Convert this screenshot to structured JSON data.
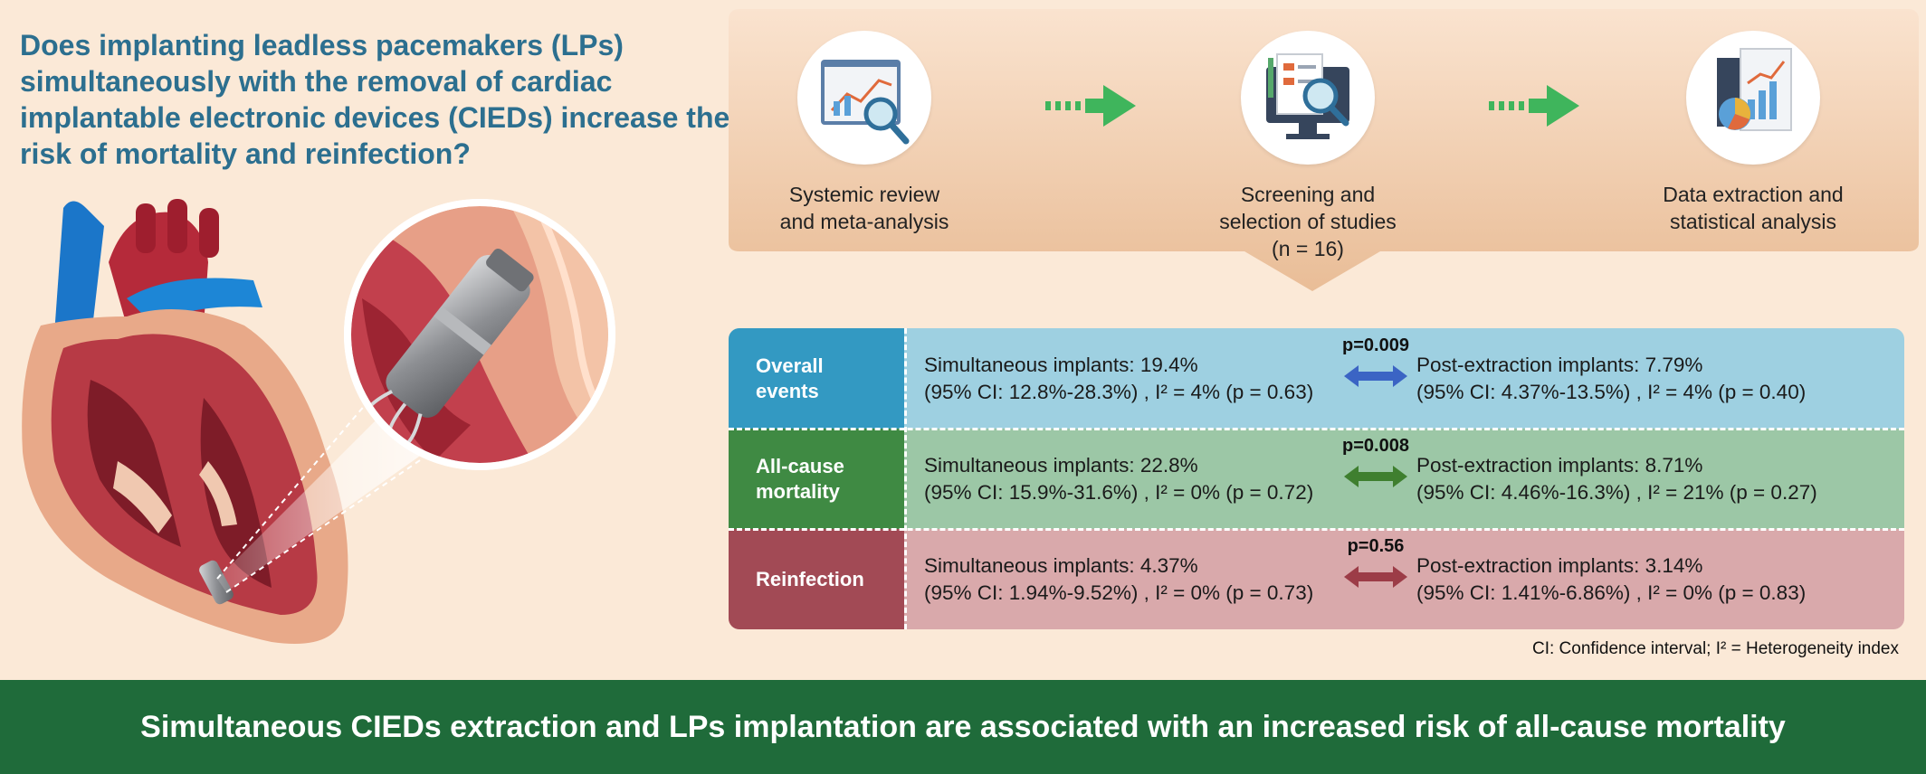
{
  "question": "Does implanting leadless pacemakers (LPs) simultaneously with the removal of cardiac implantable electronic devices (CIEDs) increase the risk of mortality and reinfection?",
  "workflow": {
    "steps": [
      {
        "label": "Systemic review\nand meta-analysis",
        "icon": "chart-magnifier-icon"
      },
      {
        "label": "Screening and\nselection of studies\n(n = 16)",
        "icon": "document-search-icon"
      },
      {
        "label": "Data extraction and\nstatistical analysis",
        "icon": "report-chart-icon"
      }
    ]
  },
  "results": [
    {
      "category": "Overall\nevents",
      "sim_line1": "Simultaneous implants: 19.4%",
      "sim_line2": "(95% CI: 12.8%-28.3%) , I² = 4% (p = 0.63)",
      "p": "p=0.009",
      "post_line1": "Post-extraction implants: 7.79%",
      "post_line2": "(95% CI: 4.37%-13.5%) , I² = 4% (p = 0.40)",
      "cat_color": "#3399c2",
      "row_color": "#9ed0e1",
      "arrow_color": "#3b64c4"
    },
    {
      "category": "All-cause\nmortality",
      "sim_line1": "Simultaneous implants: 22.8%",
      "sim_line2": "(95% CI: 15.9%-31.6%) , I² = 0% (p = 0.72)",
      "p": "p=0.008",
      "post_line1": "Post-extraction implants: 8.71%",
      "post_line2": "(95% CI: 4.46%-16.3%) , I² = 21% (p = 0.27)",
      "cat_color": "#3f8a43",
      "row_color": "#9cc7a6",
      "arrow_color": "#3f7f2f"
    },
    {
      "category": "Reinfection",
      "sim_line1": "Simultaneous implants: 4.37%",
      "sim_line2": "(95% CI: 1.94%-9.52%) , I² = 0% (p = 0.73)",
      "p": "p=0.56",
      "post_line1": "Post-extraction implants: 3.14%",
      "post_line2": "(95% CI: 1.41%-6.86%) , I² = 0% (p = 0.83)",
      "cat_color": "#a24a55",
      "row_color": "#d9a9ab",
      "arrow_color": "#9c3c47"
    }
  ],
  "footnote": "CI: Confidence interval; I² = Heterogeneity index",
  "conclusion": "Simultaneous CIEDs extraction and LPs implantation are associated with an increased risk of all-cause mortality",
  "colors": {
    "background": "#fbe9d7",
    "question_text": "#2c6f8f",
    "workflow_panel": "#ecc29c",
    "workflow_arrow": "#3fb55c",
    "conclusion_banner": "#1f6b3a"
  }
}
